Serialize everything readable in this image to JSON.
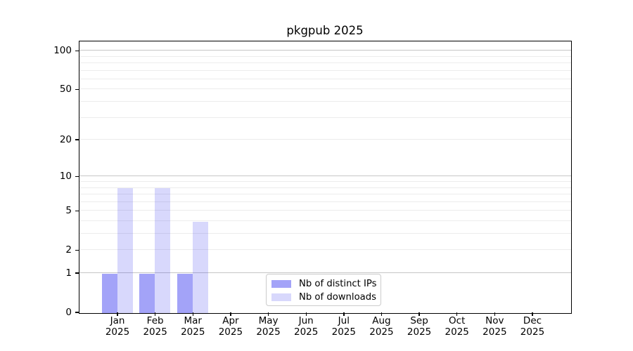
{
  "chart_data": {
    "type": "bar",
    "title": "pkgpub 2025",
    "categories": [
      "Jan",
      "Feb",
      "Mar",
      "Apr",
      "May",
      "Jun",
      "Jul",
      "Aug",
      "Sep",
      "Oct",
      "Nov",
      "Dec"
    ],
    "category_year": "2025",
    "series": [
      {
        "name": "Nb of distinct IPs",
        "color": "rgba(50,50,240,0.45)",
        "values": [
          1,
          1,
          1,
          0,
          0,
          0,
          0,
          0,
          0,
          0,
          0,
          0
        ]
      },
      {
        "name": "Nb of downloads",
        "color": "rgba(50,50,240,0.19)",
        "values": [
          8,
          8,
          4,
          0,
          0,
          0,
          0,
          0,
          0,
          0,
          0,
          0
        ]
      }
    ],
    "y_axis": {
      "scale": "log1p",
      "range": [
        0,
        100
      ],
      "tick_values": [
        0,
        1,
        2,
        5,
        10,
        20,
        50,
        100
      ],
      "tick_labels": [
        "0",
        "1",
        "2",
        "5",
        "10",
        "20",
        "50",
        "100"
      ],
      "major_gridlines": [
        1,
        10,
        100
      ],
      "minor_gridlines": [
        2,
        3,
        4,
        5,
        6,
        7,
        8,
        9,
        20,
        30,
        40,
        50,
        60,
        70,
        80,
        90
      ]
    },
    "x_axis": {
      "label_line_2": "2025"
    },
    "grid": true,
    "legend": {
      "position": "inside-bottom-center"
    }
  },
  "colors": {
    "axis_frame": "#000000",
    "major_grid": "#c6c6c6",
    "minor_grid": "#ececec",
    "legend_border": "#cccccc",
    "text": "#000000"
  }
}
